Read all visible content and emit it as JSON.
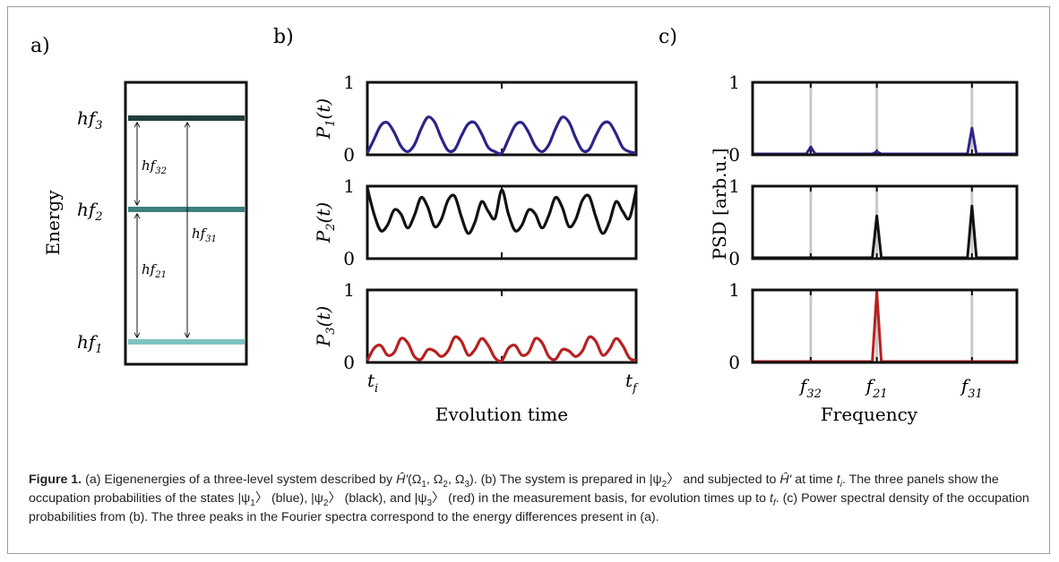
{
  "figure": {
    "panel_labels": {
      "a": "a)",
      "b": "b)",
      "c": "c)"
    },
    "panel_a": {
      "ylabel": "Energy",
      "levels": [
        {
          "name": "h",
          "var": "f",
          "sub": "1",
          "color": "#7cc3c1",
          "energy": 1
        },
        {
          "name": "h",
          "var": "f",
          "sub": "2",
          "color": "#3c7f7c",
          "energy": 2
        },
        {
          "name": "h",
          "var": "f",
          "sub": "3",
          "color": "#213f3d",
          "energy": 3
        }
      ],
      "transitions": [
        {
          "label": "hf",
          "sub": "32",
          "from": 2,
          "to": 3
        },
        {
          "label": "hf",
          "sub": "21",
          "from": 1,
          "to": 2
        },
        {
          "label": "hf",
          "sub": "31",
          "from": 1,
          "to": 3
        }
      ]
    },
    "chart_data": [
      {
        "type": "line",
        "panel": "b",
        "xlabel": "Evolution time",
        "xticklabels": [
          "t_i",
          "t_f"
        ],
        "ylim": [
          0,
          1
        ],
        "yticks": [
          "0",
          "1"
        ],
        "series": [
          {
            "ylabel": "P_1(t)",
            "color": "#2c2489",
            "x": [
              0,
              0.025,
              0.05,
              0.075,
              0.1,
              0.125,
              0.15,
              0.175,
              0.2,
              0.225,
              0.25,
              0.275,
              0.3,
              0.325,
              0.35,
              0.375,
              0.4,
              0.425,
              0.45,
              0.475,
              0.5,
              0.525,
              0.55,
              0.575,
              0.6,
              0.625,
              0.65,
              0.675,
              0.7,
              0.725,
              0.75,
              0.775,
              0.8,
              0.825,
              0.85,
              0.875,
              0.9,
              0.925,
              0.95,
              0.975,
              1.0
            ],
            "y": [
              0.0,
              0.2,
              0.4,
              0.44,
              0.3,
              0.1,
              0.02,
              0.12,
              0.35,
              0.52,
              0.45,
              0.22,
              0.04,
              0.05,
              0.25,
              0.42,
              0.44,
              0.28,
              0.08,
              0.02,
              0.0,
              0.2,
              0.4,
              0.44,
              0.3,
              0.1,
              0.02,
              0.12,
              0.35,
              0.52,
              0.45,
              0.22,
              0.04,
              0.05,
              0.25,
              0.42,
              0.44,
              0.28,
              0.08,
              0.02,
              0.0
            ]
          },
          {
            "ylabel": "P_2(t)",
            "color": "#111111",
            "x": [
              0,
              0.025,
              0.05,
              0.075,
              0.1,
              0.125,
              0.15,
              0.175,
              0.2,
              0.225,
              0.25,
              0.275,
              0.3,
              0.325,
              0.35,
              0.375,
              0.4,
              0.425,
              0.45,
              0.475,
              0.5,
              0.525,
              0.55,
              0.575,
              0.6,
              0.625,
              0.65,
              0.675,
              0.7,
              0.725,
              0.75,
              0.775,
              0.8,
              0.825,
              0.85,
              0.875,
              0.9,
              0.925,
              0.95,
              0.975,
              1.0
            ],
            "y": [
              1.0,
              0.62,
              0.38,
              0.46,
              0.68,
              0.62,
              0.42,
              0.6,
              0.86,
              0.72,
              0.44,
              0.54,
              0.82,
              0.88,
              0.58,
              0.34,
              0.5,
              0.8,
              0.66,
              0.56,
              0.97,
              0.62,
              0.38,
              0.46,
              0.68,
              0.62,
              0.42,
              0.6,
              0.86,
              0.72,
              0.44,
              0.54,
              0.82,
              0.88,
              0.58,
              0.34,
              0.5,
              0.8,
              0.66,
              0.56,
              0.97
            ]
          },
          {
            "ylabel": "P_3(t)",
            "color": "#b82020",
            "x": [
              0,
              0.025,
              0.05,
              0.075,
              0.1,
              0.125,
              0.15,
              0.175,
              0.2,
              0.225,
              0.25,
              0.275,
              0.3,
              0.325,
              0.35,
              0.375,
              0.4,
              0.425,
              0.45,
              0.475,
              0.5,
              0.525,
              0.55,
              0.575,
              0.6,
              0.625,
              0.65,
              0.675,
              0.7,
              0.725,
              0.75,
              0.775,
              0.8,
              0.825,
              0.85,
              0.875,
              0.9,
              0.925,
              0.95,
              0.975,
              1.0
            ],
            "y": [
              0.0,
              0.18,
              0.22,
              0.08,
              0.12,
              0.32,
              0.26,
              0.06,
              0.02,
              0.16,
              0.14,
              0.06,
              0.14,
              0.34,
              0.28,
              0.08,
              0.16,
              0.32,
              0.22,
              0.04,
              0.0,
              0.18,
              0.22,
              0.08,
              0.12,
              0.32,
              0.26,
              0.06,
              0.02,
              0.16,
              0.14,
              0.06,
              0.14,
              0.34,
              0.28,
              0.08,
              0.16,
              0.32,
              0.22,
              0.04,
              0.0
            ]
          }
        ]
      },
      {
        "type": "line",
        "panel": "c",
        "xlabel": "Frequency",
        "ylabel": "PSD [arb.u.]",
        "xticklabels": [
          "f_32",
          "f_21",
          "f_31"
        ],
        "xticks": [
          0.22,
          0.47,
          0.83
        ],
        "ylim": [
          0,
          1
        ],
        "yticks": [
          "0",
          "1"
        ],
        "series": [
          {
            "color": "#2c2489",
            "peaks": [
              {
                "x": 0.22,
                "height": 0.1
              },
              {
                "x": 0.47,
                "height": 0.03
              },
              {
                "x": 0.83,
                "height": 0.37
              }
            ]
          },
          {
            "color": "#111111",
            "peaks": [
              {
                "x": 0.47,
                "height": 0.6
              },
              {
                "x": 0.83,
                "height": 0.74
              }
            ]
          },
          {
            "color": "#b82020",
            "peaks": [
              {
                "x": 0.47,
                "height": 1.0
              }
            ]
          }
        ]
      }
    ]
  },
  "caption": {
    "label": "Figure 1.",
    "p1": "(a) Eigenenergies of a three-level system described by ",
    "h": "Ĥ′",
    "p2": "(Ω",
    "p2sub1": "1",
    "p3": ", Ω",
    "p3sub2": "2",
    "p4": ", Ω",
    "p4sub3": "3",
    "p5": "). (b) The system is prepared in |ψ",
    "p5sub": "2",
    "p6": "〉 and subjected to ",
    "h2": "Ĥ′",
    "p7": " at time ",
    "ti": "t",
    "tisub": "i",
    "p8": ". The three panels show the occupation probabilities of the states |ψ",
    "s1": "1",
    "p9": "〉 (blue), |ψ",
    "s2": "2",
    "p10": "〉 (black), and |ψ",
    "s3": "3",
    "p11": "〉 (red) in the measurement basis, for evolution times up to ",
    "tf": "t",
    "tfsub": "f",
    "p12": ". (c) Power spectral density of the occupation probabilities from (b). The three peaks in the Fourier spectra correspond to the energy differences present in (a)."
  }
}
